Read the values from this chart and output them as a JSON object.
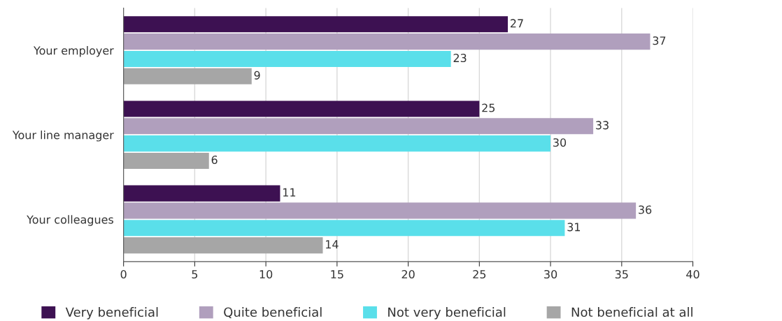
{
  "chart_data": {
    "type": "bar",
    "orientation": "horizontal",
    "categories": [
      "Your employer",
      "Your line manager",
      "Your colleagues"
    ],
    "series": [
      {
        "name": "Very beneficial",
        "color": "#3d1152",
        "values": [
          27,
          25,
          11
        ]
      },
      {
        "name": "Quite beneficial",
        "color": "#b09fbd",
        "values": [
          37,
          33,
          36
        ]
      },
      {
        "name": "Not very beneficial",
        "color": "#5adfea",
        "values": [
          23,
          30,
          31
        ]
      },
      {
        "name": "Not beneficial at all",
        "color": "#a6a6a6",
        "values": [
          9,
          6,
          14
        ]
      }
    ],
    "xlim": [
      0,
      40
    ],
    "xticks": [
      0,
      5,
      10,
      15,
      20,
      25,
      30,
      35,
      40
    ],
    "grid": "x",
    "legend": "bottom",
    "data_labels": true
  }
}
